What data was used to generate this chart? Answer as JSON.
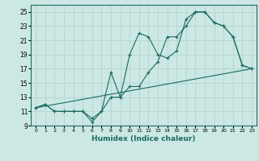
{
  "xlabel": "Humidex (Indice chaleur)",
  "bg_color": "#cce8e4",
  "grid_color": "#b8d8d4",
  "line_color": "#1a6b5e",
  "xlim": [
    -0.5,
    23.5
  ],
  "ylim": [
    9,
    26
  ],
  "yticks": [
    9,
    11,
    13,
    15,
    17,
    19,
    21,
    23,
    25
  ],
  "xticks": [
    0,
    1,
    2,
    3,
    4,
    5,
    6,
    7,
    8,
    9,
    10,
    11,
    12,
    13,
    14,
    15,
    16,
    17,
    18,
    19,
    20,
    21,
    22,
    23
  ],
  "line1_x": [
    0,
    1,
    2,
    3,
    4,
    5,
    6,
    7,
    8,
    9,
    10,
    11,
    12,
    13,
    14,
    15,
    16,
    17,
    18,
    19,
    20,
    21,
    22,
    23
  ],
  "line1_y": [
    11.5,
    12.0,
    11.0,
    11.0,
    11.0,
    11.0,
    9.5,
    11.0,
    13.0,
    13.0,
    14.5,
    14.5,
    16.5,
    18.0,
    21.5,
    21.5,
    23.0,
    25.0,
    25.0,
    23.5,
    23.0,
    21.5,
    17.5,
    17.0
  ],
  "line2_x": [
    0,
    1,
    2,
    3,
    4,
    5,
    6,
    7,
    8,
    9,
    10,
    11,
    12,
    13,
    14,
    15,
    16,
    17,
    18,
    19,
    20,
    21,
    22,
    23
  ],
  "line2_y": [
    11.5,
    12.0,
    11.0,
    11.0,
    11.0,
    11.0,
    10.0,
    11.0,
    16.5,
    13.0,
    19.0,
    22.0,
    21.5,
    19.0,
    18.5,
    19.5,
    24.0,
    25.0,
    25.0,
    23.5,
    23.0,
    21.5,
    17.5,
    17.0
  ],
  "line3_x": [
    0,
    23
  ],
  "line3_y": [
    11.5,
    17.0
  ]
}
